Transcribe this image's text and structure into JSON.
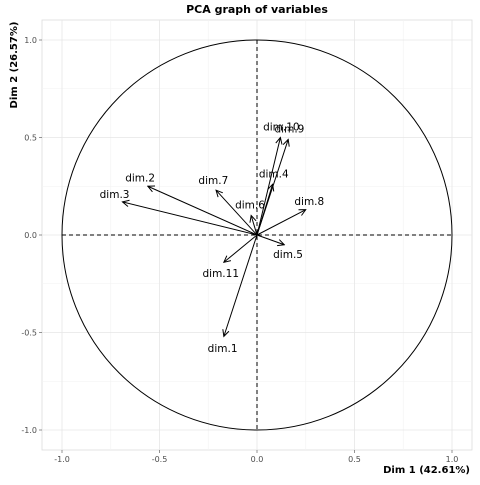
{
  "chart_data": {
    "type": "scatter",
    "title": "PCA graph of variables",
    "xlabel": "Dim 1 (42.61%)",
    "ylabel": "Dim 2 (26.57%)",
    "xlim": [
      -1.1,
      1.1
    ],
    "ylim": [
      -1.1,
      1.1
    ],
    "x_ticks": [
      "-1.0",
      "-0.5",
      "0.0",
      "0.5",
      "1.0"
    ],
    "y_ticks": [
      "-1.0",
      "-0.5",
      "0.0",
      "0.5",
      "1.0"
    ],
    "grid": true,
    "unit_circle": true,
    "variables": [
      {
        "name": "dim.1",
        "x": -0.17,
        "y": -0.52
      },
      {
        "name": "dim.2",
        "x": -0.56,
        "y": 0.25
      },
      {
        "name": "dim.3",
        "x": -0.69,
        "y": 0.17
      },
      {
        "name": "dim.4",
        "x": 0.08,
        "y": 0.26
      },
      {
        "name": "dim.5",
        "x": 0.14,
        "y": -0.05
      },
      {
        "name": "dim.6",
        "x": -0.03,
        "y": 0.1
      },
      {
        "name": "dim.7",
        "x": -0.21,
        "y": 0.23
      },
      {
        "name": "dim.8",
        "x": 0.25,
        "y": 0.13
      },
      {
        "name": "dim.9",
        "x": 0.16,
        "y": 0.49
      },
      {
        "name": "dim.10",
        "x": 0.12,
        "y": 0.5
      },
      {
        "name": "dim.11",
        "x": -0.17,
        "y": -0.14
      }
    ]
  }
}
